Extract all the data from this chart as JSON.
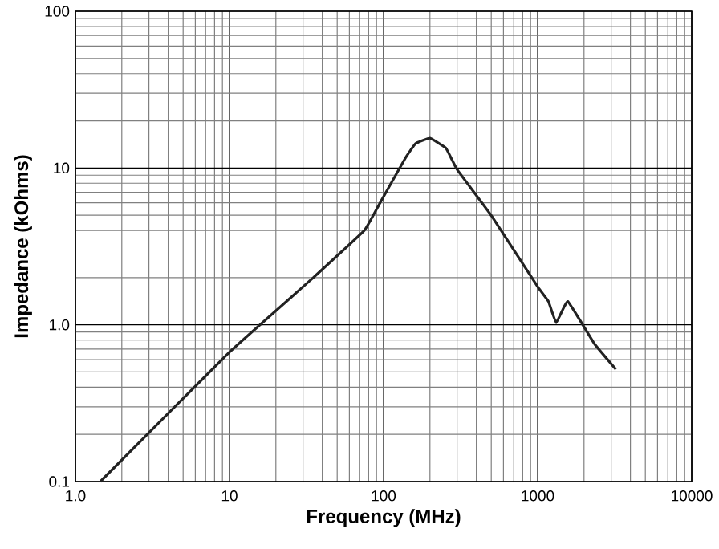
{
  "chart_data": {
    "type": "line",
    "xlabel": "Frequency (MHz)",
    "ylabel": "Impedance (kOhms)",
    "log": "xy",
    "grid": true,
    "marker": "none",
    "line_style": "solid",
    "xlim": [
      1,
      10000
    ],
    "ylim": [
      0.1,
      100
    ],
    "xticks": [
      {
        "value": 1,
        "label": "1.0"
      },
      10,
      100,
      1000,
      10000
    ],
    "yticks": [
      0.1,
      {
        "value": 1,
        "label": "1.0"
      },
      10,
      100
    ],
    "x": [
      1.45,
      10,
      35,
      75,
      94,
      138,
      161,
      200,
      254,
      300,
      506,
      1000,
      1175,
      1320,
      1570,
      2340,
      3220
    ],
    "series": [
      {
        "color": "#222222",
        "values": [
          0.1,
          0.67,
          2.0,
          4.0,
          5.9,
          11.5,
          14.3,
          15.5,
          13.4,
          9.8,
          4.9,
          1.75,
          1.41,
          1.03,
          1.41,
          0.755,
          0.52
        ]
      }
    ]
  }
}
